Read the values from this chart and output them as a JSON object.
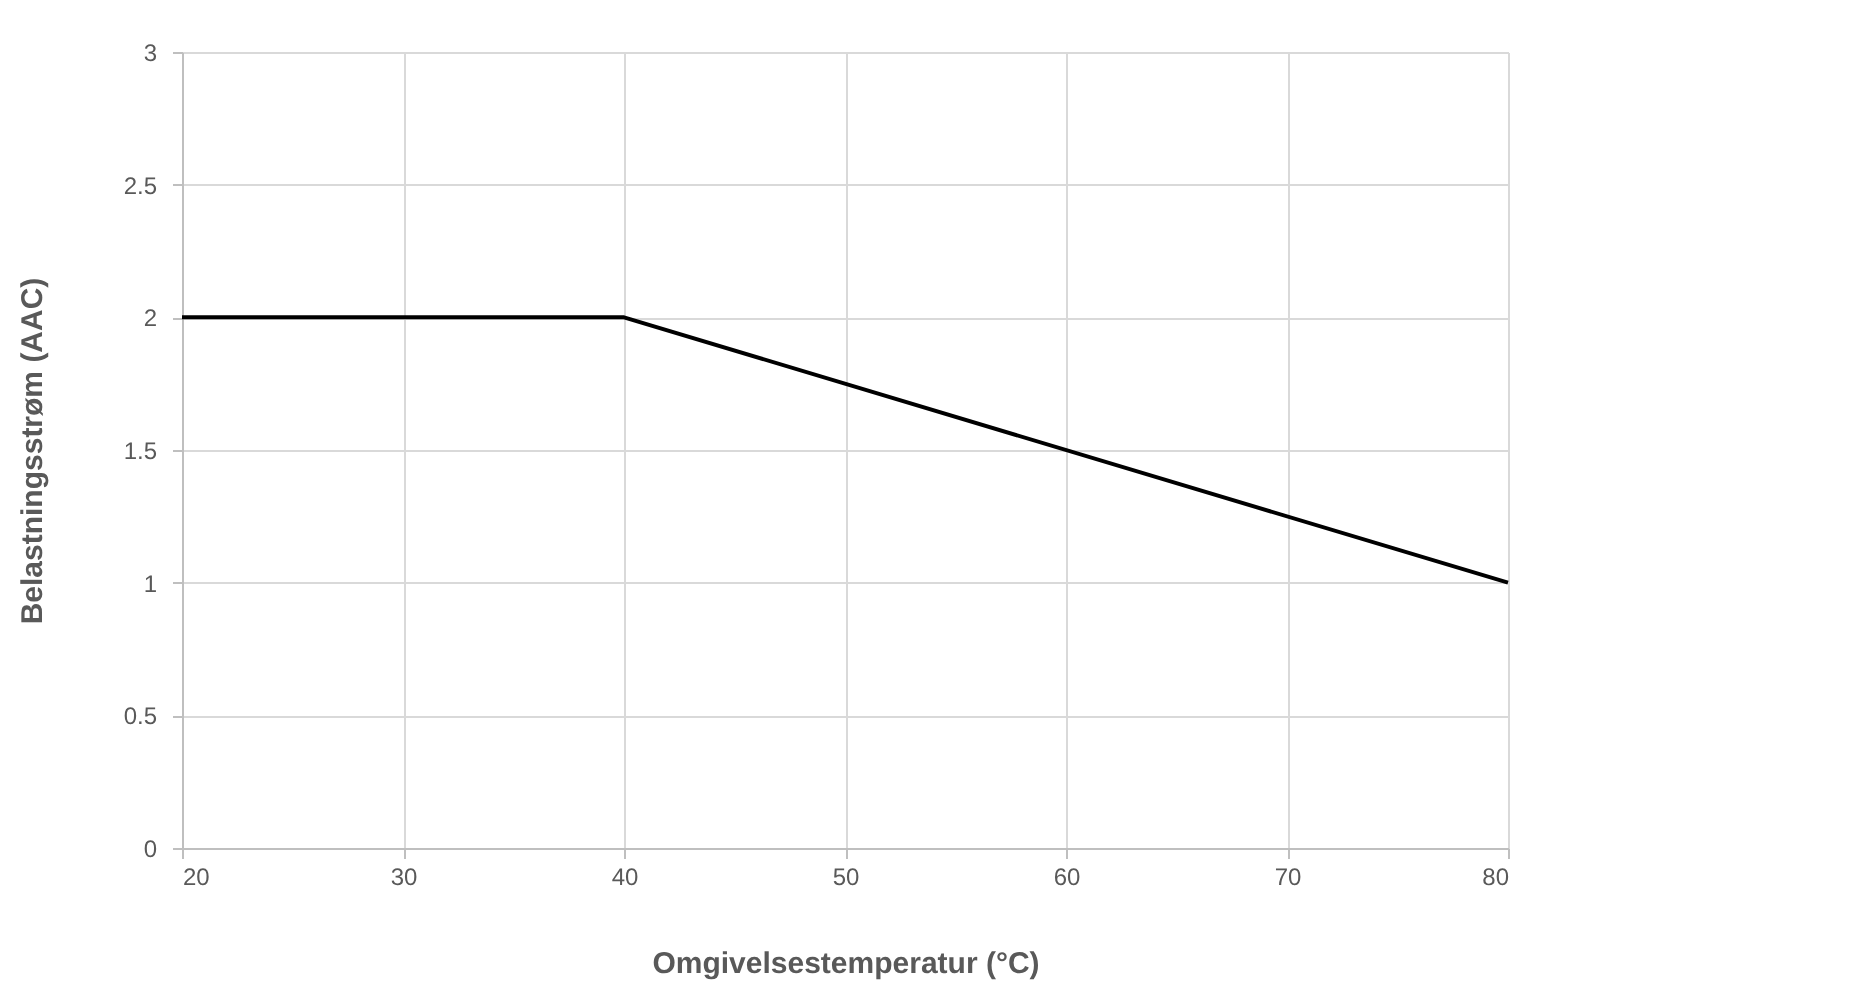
{
  "chart_data": {
    "type": "line",
    "xlabel": "Omgivelsestemperatur (°C)",
    "ylabel": "Belastningsstrøm (AAC)",
    "x": [
      20,
      40,
      80
    ],
    "series": [
      {
        "color": "#000000",
        "values": [
          2,
          2,
          1
        ]
      }
    ],
    "xlim": [
      20,
      80
    ],
    "xticks": [
      20,
      30,
      40,
      50,
      60,
      70,
      80
    ],
    "ylim": [
      0,
      3
    ],
    "yticks": [
      0,
      0.5,
      1,
      1.5,
      2,
      2.5,
      3
    ],
    "grid": true,
    "marker": "none",
    "line_style": "solid"
  }
}
